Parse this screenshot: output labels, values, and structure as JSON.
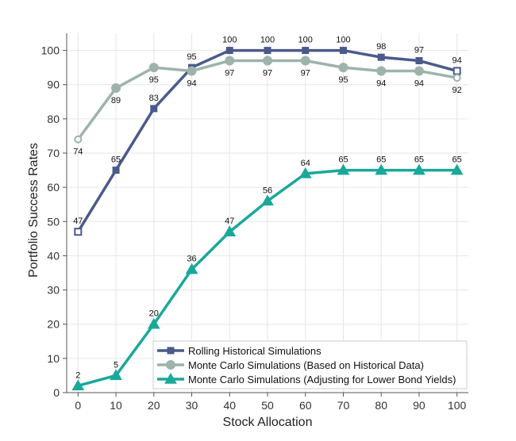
{
  "chart_data": {
    "type": "line",
    "title": "",
    "xlabel": "Stock Allocation",
    "ylabel": "Portfolio Success Rates",
    "x": [
      0,
      10,
      20,
      30,
      40,
      50,
      60,
      70,
      80,
      90,
      100
    ],
    "xlim": [
      -3,
      103
    ],
    "ylim": [
      0,
      105
    ],
    "xticks": [
      0,
      10,
      20,
      30,
      40,
      50,
      60,
      70,
      80,
      90,
      100
    ],
    "yticks": [
      0,
      10,
      20,
      30,
      40,
      50,
      60,
      70,
      80,
      90,
      100
    ],
    "grid": true,
    "legend": "bottom-right",
    "series": [
      {
        "name": "Rolling Historical Simulations",
        "color": "#4a5a8a",
        "marker": "square",
        "values": [
          47,
          65,
          83,
          95,
          100,
          100,
          100,
          100,
          98,
          97,
          94
        ],
        "label_pos": [
          "above",
          "above",
          "above",
          "above",
          "above",
          "above",
          "above",
          "above",
          "above",
          "above",
          "above"
        ]
      },
      {
        "name": "Monte Carlo Simulations (Based on Historical Data)",
        "color": "#9db3ab",
        "marker": "circle",
        "values": [
          74,
          89,
          95,
          94,
          97,
          97,
          97,
          95,
          94,
          94,
          92
        ],
        "label_pos": [
          "below",
          "below",
          "below",
          "below",
          "below",
          "below",
          "below",
          "below",
          "below",
          "below",
          "below"
        ]
      },
      {
        "name": "Monte Carlo Simulations (Adjusting for Lower Bond Yields)",
        "color": "#1aa89a",
        "marker": "triangle",
        "values": [
          2,
          5,
          20,
          36,
          47,
          56,
          64,
          65,
          65,
          65,
          65
        ],
        "label_pos": [
          "above",
          "above",
          "above",
          "above",
          "above",
          "above",
          "above",
          "above",
          "above",
          "above",
          "above"
        ]
      }
    ]
  }
}
